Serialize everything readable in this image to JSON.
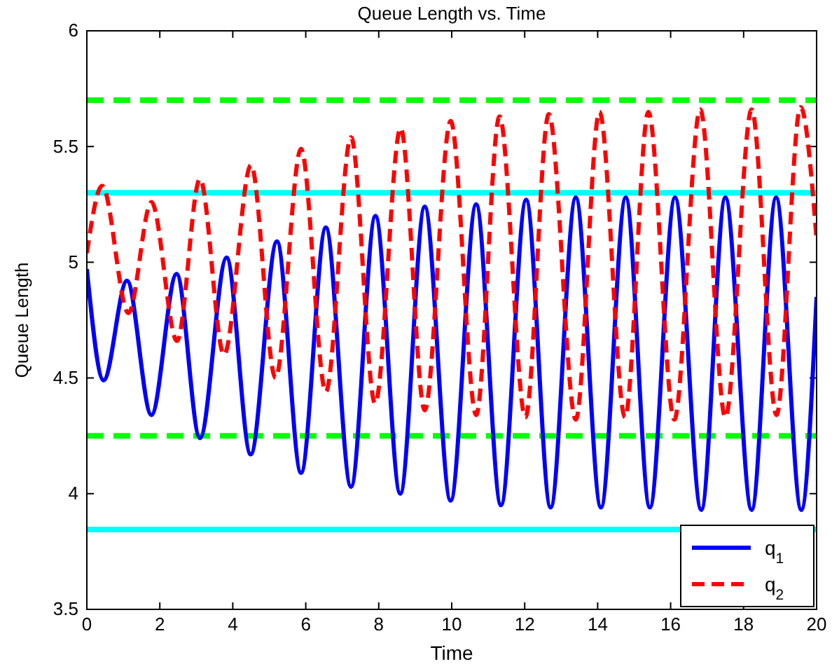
{
  "chart_data": {
    "type": "line",
    "title": "Queue Length vs. Time",
    "xlabel": "Time",
    "ylabel": "Queue Length",
    "xlim": [
      0,
      20
    ],
    "ylim": [
      3.5,
      6
    ],
    "xticks": [
      0,
      2,
      4,
      6,
      8,
      10,
      12,
      14,
      16,
      18,
      20
    ],
    "yticks": [
      3.5,
      4,
      4.5,
      5,
      5.5,
      6
    ],
    "grid": false,
    "legend": "bottom right",
    "marker": "none",
    "series": [
      {
        "name": "q$_{1}$",
        "color": "#0000ff",
        "line_style": "solid",
        "x": [
          0,
          0.46,
          1.1,
          1.77,
          2.46,
          3.1,
          3.83,
          4.49,
          5.21,
          5.87,
          6.55,
          7.24,
          7.91,
          8.59,
          9.26,
          9.97,
          10.67,
          11.35,
          12.04,
          12.71,
          13.4,
          14.09,
          14.77,
          15.43,
          16.12,
          16.84,
          17.5,
          18.22,
          18.89,
          19.58,
          20
        ],
        "values": [
          4.97,
          4.49,
          4.92,
          4.34,
          4.95,
          4.24,
          5.02,
          4.17,
          5.09,
          4.09,
          5.15,
          4.03,
          5.2,
          4.0,
          5.24,
          3.97,
          5.25,
          3.95,
          5.27,
          3.94,
          5.28,
          3.94,
          5.28,
          3.94,
          5.28,
          3.93,
          5.28,
          3.93,
          5.28,
          3.93,
          4.85
        ]
      },
      {
        "name": "q$_{2}$",
        "color": "#ff0000",
        "line_style": "dashed",
        "x": [
          0,
          0.42,
          1.14,
          1.77,
          2.47,
          3.1,
          3.76,
          4.5,
          5.17,
          5.87,
          6.55,
          7.24,
          7.9,
          8.6,
          9.26,
          9.97,
          10.67,
          11.31,
          12.02,
          12.66,
          13.4,
          14.05,
          14.75,
          15.39,
          16.1,
          16.81,
          17.5,
          18.22,
          18.9,
          19.56,
          20
        ],
        "values": [
          5.04,
          5.33,
          4.78,
          5.26,
          4.66,
          5.36,
          4.6,
          5.42,
          4.5,
          5.49,
          4.44,
          5.54,
          4.39,
          5.58,
          4.36,
          5.61,
          4.34,
          5.63,
          4.33,
          5.64,
          4.32,
          5.65,
          4.33,
          5.65,
          4.32,
          5.66,
          4.33,
          5.66,
          4.34,
          5.67,
          5.1
        ]
      }
    ],
    "ref_lines": [
      {
        "axis": "y",
        "value": 5.7,
        "color": "#00ff00",
        "line_style": "dashed"
      },
      {
        "axis": "y",
        "value": 4.25,
        "color": "#00ff00",
        "line_style": "dashed"
      },
      {
        "axis": "y",
        "value": 5.3,
        "color": "#00ffff",
        "line_style": "solid"
      },
      {
        "axis": "y",
        "value": 3.845,
        "color": "#00ffff",
        "line_style": "solid"
      }
    ]
  }
}
